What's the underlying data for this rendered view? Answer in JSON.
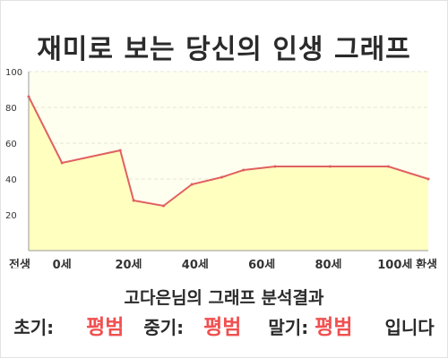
{
  "title": "재미로 보는 당신의 인생 그래프",
  "summary": "고다은님의 그래프 분석결과",
  "results": {
    "early": {
      "label": "초기:",
      "value": "평범"
    },
    "middle": {
      "label": "중기:",
      "value": "평범"
    },
    "late": {
      "label": "말기:",
      "value": "평범"
    },
    "suffix": "입니다"
  },
  "colors": {
    "line": "#e06060",
    "fill": "#ffffc0",
    "plot_background": "#fffff0",
    "grid": "#e6e6d2",
    "highlight_text": "#f05050"
  },
  "chart_data": {
    "type": "area",
    "categories": [
      "전생",
      "0세",
      "",
      "20세",
      "",
      "40세",
      "",
      "60세",
      "",
      "80세",
      "",
      "100세",
      "환생"
    ],
    "x": [
      0,
      1,
      2,
      3,
      4,
      5,
      6,
      7,
      8,
      9,
      10,
      11,
      12
    ],
    "series": [
      {
        "values": [
          86,
          49,
          null,
          56,
          28,
          25,
          37,
          41,
          45,
          47,
          47,
          47,
          40
        ]
      }
    ],
    "x_points": [
      0,
      1,
      2.75,
      3.15,
      4.05,
      4.9,
      5.8,
      6.45,
      7.4,
      9.05,
      10.8,
      12
    ],
    "y_points": [
      86,
      49,
      56,
      28,
      25,
      37,
      41,
      45,
      47,
      47,
      47,
      40
    ],
    "ylim": [
      0,
      100
    ],
    "yticks": [
      20,
      40,
      60,
      80,
      100
    ],
    "grid": true,
    "legend": "none"
  }
}
